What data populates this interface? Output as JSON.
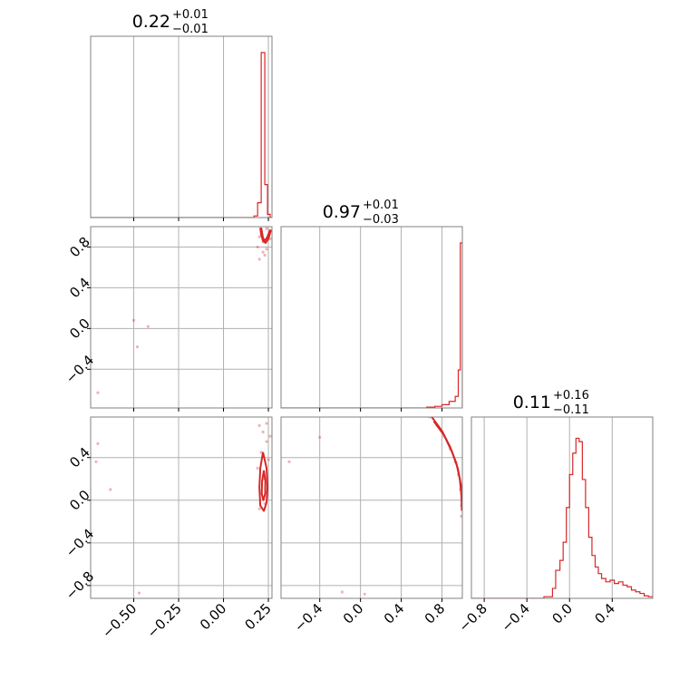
{
  "colors": {
    "series": "#d62728",
    "grid": "#b0b0b0",
    "frame": "#808080"
  },
  "chart_data": {
    "type": "corner",
    "grid": true,
    "panels": [
      {
        "id": "hist-0",
        "type": "histogram",
        "row": 0,
        "col": 0,
        "title": {
          "value": "0.22",
          "plus": "+0.01",
          "minus": "−0.01"
        },
        "xlim": [
          -0.74,
          0.27
        ],
        "xgrid": [
          -0.5,
          -0.25,
          0.0,
          0.25
        ],
        "bins": [
          {
            "x0": -0.74,
            "x1": 0.17,
            "h": 0.0
          },
          {
            "x0": 0.17,
            "x1": 0.19,
            "h": 0.01
          },
          {
            "x0": 0.19,
            "x1": 0.21,
            "h": 0.09
          },
          {
            "x0": 0.21,
            "x1": 0.23,
            "h": 1.0
          },
          {
            "x0": 0.23,
            "x1": 0.245,
            "h": 0.2
          },
          {
            "x0": 0.245,
            "x1": 0.26,
            "h": 0.02
          },
          {
            "x0": 0.26,
            "x1": 0.27,
            "h": 0.0
          }
        ]
      },
      {
        "id": "scatter-1-0",
        "type": "scatter2d",
        "row": 1,
        "col": 0,
        "xlim": [
          -0.74,
          0.27
        ],
        "ylim": [
          -0.78,
          1.0
        ],
        "xgrid": [
          -0.5,
          -0.25,
          0.0,
          0.25
        ],
        "ygrid": [
          -0.4,
          0.0,
          0.4,
          0.8
        ],
        "points": [
          [
            -0.5,
            0.08
          ],
          [
            -0.42,
            0.02
          ],
          [
            -0.48,
            -0.18
          ],
          [
            -0.7,
            -0.63
          ],
          [
            0.2,
            0.9
          ],
          [
            0.22,
            0.85
          ],
          [
            0.24,
            0.78
          ],
          [
            0.21,
            0.95
          ],
          [
            0.25,
            0.92
          ],
          [
            0.19,
            0.8
          ],
          [
            0.23,
            0.72
          ],
          [
            0.26,
            0.88
          ],
          [
            0.2,
            0.68
          ],
          [
            0.24,
            0.98
          ],
          [
            0.22,
            0.75
          ]
        ],
        "contours": [
          [
            [
              0.21,
              0.99
            ],
            [
              0.215,
              0.94
            ],
            [
              0.22,
              0.89
            ],
            [
              0.23,
              0.86
            ],
            [
              0.245,
              0.9
            ],
            [
              0.26,
              0.97
            ]
          ],
          [
            [
              0.205,
              0.99
            ],
            [
              0.21,
              0.92
            ],
            [
              0.22,
              0.86
            ],
            [
              0.235,
              0.84
            ],
            [
              0.25,
              0.88
            ],
            [
              0.265,
              0.97
            ]
          ]
        ]
      },
      {
        "id": "hist-1",
        "type": "histogram",
        "row": 1,
        "col": 1,
        "title": {
          "value": "0.97",
          "plus": "+0.01",
          "minus": "−0.03"
        },
        "xlim": [
          -0.78,
          1.0
        ],
        "xgrid": [
          -0.4,
          0.0,
          0.4,
          0.8
        ],
        "bins": [
          {
            "x0": -0.78,
            "x1": 0.65,
            "h": 0.0
          },
          {
            "x0": 0.65,
            "x1": 0.73,
            "h": 0.005
          },
          {
            "x0": 0.73,
            "x1": 0.8,
            "h": 0.01
          },
          {
            "x0": 0.8,
            "x1": 0.87,
            "h": 0.02
          },
          {
            "x0": 0.87,
            "x1": 0.93,
            "h": 0.04
          },
          {
            "x0": 0.93,
            "x1": 0.96,
            "h": 0.07
          },
          {
            "x0": 0.96,
            "x1": 0.98,
            "h": 0.23
          },
          {
            "x0": 0.98,
            "x1": 1.0,
            "h": 1.0
          }
        ]
      },
      {
        "id": "scatter-2-0",
        "type": "scatter2d",
        "row": 2,
        "col": 0,
        "xlim": [
          -0.74,
          0.27
        ],
        "ylim": [
          -0.92,
          0.78
        ],
        "xgrid": [
          -0.5,
          -0.25,
          0.0,
          0.25
        ],
        "ygrid": [
          -0.8,
          -0.4,
          0.0,
          0.4
        ],
        "points": [
          [
            -0.7,
            0.53
          ],
          [
            -0.71,
            0.36
          ],
          [
            -0.63,
            0.1
          ],
          [
            -0.47,
            -0.87
          ],
          [
            0.2,
            0.7
          ],
          [
            0.22,
            0.64
          ],
          [
            0.24,
            0.55
          ],
          [
            0.21,
            0.45
          ],
          [
            0.25,
            0.38
          ],
          [
            0.19,
            0.3
          ],
          [
            0.23,
            -0.03
          ],
          [
            0.26,
            0.6
          ],
          [
            0.2,
            -0.08
          ],
          [
            0.24,
            0.72
          ],
          [
            0.22,
            0.2
          ]
        ],
        "contours": [
          [
            [
              0.22,
              0.45
            ],
            [
              0.205,
              0.3
            ],
            [
              0.2,
              0.12
            ],
            [
              0.205,
              -0.05
            ],
            [
              0.225,
              -0.1
            ],
            [
              0.24,
              -0.02
            ],
            [
              0.245,
              0.12
            ],
            [
              0.24,
              0.3
            ],
            [
              0.22,
              0.45
            ]
          ],
          [
            [
              0.225,
              0.28
            ],
            [
              0.215,
              0.18
            ],
            [
              0.213,
              0.06
            ],
            [
              0.222,
              0.0
            ],
            [
              0.232,
              0.06
            ],
            [
              0.233,
              0.18
            ],
            [
              0.225,
              0.28
            ]
          ]
        ]
      },
      {
        "id": "scatter-2-1",
        "type": "scatter2d",
        "row": 2,
        "col": 1,
        "xlim": [
          -0.78,
          1.0
        ],
        "ylim": [
          -0.92,
          0.78
        ],
        "xgrid": [
          -0.4,
          0.0,
          0.4,
          0.8
        ],
        "ygrid": [
          -0.8,
          -0.4,
          0.0,
          0.4
        ],
        "points": [
          [
            -0.7,
            0.36
          ],
          [
            -0.4,
            0.59
          ],
          [
            -0.18,
            -0.86
          ],
          [
            0.04,
            -0.88
          ],
          [
            0.68,
            0.78
          ],
          [
            0.75,
            0.7
          ],
          [
            0.82,
            0.6
          ],
          [
            0.88,
            0.48
          ],
          [
            0.93,
            0.36
          ],
          [
            0.96,
            0.24
          ],
          [
            0.98,
            0.1
          ],
          [
            0.99,
            -0.05
          ],
          [
            0.99,
            -0.15
          ]
        ],
        "contours": [
          [
            [
              0.7,
              0.78
            ],
            [
              0.8,
              0.65
            ],
            [
              0.88,
              0.5
            ],
            [
              0.94,
              0.35
            ],
            [
              0.975,
              0.2
            ],
            [
              0.99,
              0.05
            ],
            [
              0.995,
              -0.1
            ]
          ],
          [
            [
              0.72,
              0.74
            ],
            [
              0.82,
              0.61
            ],
            [
              0.9,
              0.45
            ],
            [
              0.955,
              0.3
            ],
            [
              0.985,
              0.15
            ],
            [
              0.998,
              0.0
            ]
          ]
        ]
      },
      {
        "id": "hist-2",
        "type": "histogram",
        "row": 2,
        "col": 2,
        "title": {
          "value": "0.11",
          "plus": "+0.16",
          "minus": "−0.11"
        },
        "xlim": [
          -0.92,
          0.78
        ],
        "xgrid": [
          -0.8,
          -0.4,
          0.0,
          0.4
        ],
        "bins": [
          {
            "x0": -0.92,
            "x1": -0.24,
            "h": 0.0
          },
          {
            "x0": -0.24,
            "x1": -0.16,
            "h": 0.01
          },
          {
            "x0": -0.16,
            "x1": -0.13,
            "h": 0.06
          },
          {
            "x0": -0.13,
            "x1": -0.09,
            "h": 0.17
          },
          {
            "x0": -0.09,
            "x1": -0.06,
            "h": 0.23
          },
          {
            "x0": -0.06,
            "x1": -0.03,
            "h": 0.34
          },
          {
            "x0": -0.03,
            "x1": 0.0,
            "h": 0.55
          },
          {
            "x0": 0.0,
            "x1": 0.03,
            "h": 0.75
          },
          {
            "x0": 0.03,
            "x1": 0.06,
            "h": 0.88
          },
          {
            "x0": 0.06,
            "x1": 0.09,
            "h": 0.97
          },
          {
            "x0": 0.09,
            "x1": 0.12,
            "h": 0.95
          },
          {
            "x0": 0.12,
            "x1": 0.15,
            "h": 0.72
          },
          {
            "x0": 0.15,
            "x1": 0.18,
            "h": 0.55
          },
          {
            "x0": 0.18,
            "x1": 0.21,
            "h": 0.37
          },
          {
            "x0": 0.21,
            "x1": 0.24,
            "h": 0.26
          },
          {
            "x0": 0.24,
            "x1": 0.27,
            "h": 0.19
          },
          {
            "x0": 0.27,
            "x1": 0.3,
            "h": 0.15
          },
          {
            "x0": 0.3,
            "x1": 0.34,
            "h": 0.12
          },
          {
            "x0": 0.34,
            "x1": 0.38,
            "h": 0.1
          },
          {
            "x0": 0.38,
            "x1": 0.42,
            "h": 0.11
          },
          {
            "x0": 0.42,
            "x1": 0.46,
            "h": 0.09
          },
          {
            "x0": 0.46,
            "x1": 0.5,
            "h": 0.1
          },
          {
            "x0": 0.5,
            "x1": 0.54,
            "h": 0.08
          },
          {
            "x0": 0.54,
            "x1": 0.58,
            "h": 0.07
          },
          {
            "x0": 0.58,
            "x1": 0.62,
            "h": 0.05
          },
          {
            "x0": 0.62,
            "x1": 0.66,
            "h": 0.04
          },
          {
            "x0": 0.66,
            "x1": 0.7,
            "h": 0.03
          },
          {
            "x0": 0.7,
            "x1": 0.74,
            "h": 0.015
          },
          {
            "x0": 0.74,
            "x1": 0.78,
            "h": 0.01
          }
        ]
      }
    ],
    "tick_labels": {
      "col0_x": {
        "values": [
          -0.5,
          -0.25,
          0.0,
          0.25
        ],
        "labels": [
          "−0.50",
          "−0.25",
          "0.00",
          "0.25"
        ]
      },
      "col1_x": {
        "values": [
          -0.4,
          0.0,
          0.4,
          0.8
        ],
        "labels": [
          "−0.4",
          "0.0",
          "0.4",
          "0.8"
        ]
      },
      "col2_x": {
        "values": [
          -0.8,
          -0.4,
          0.0,
          0.4
        ],
        "labels": [
          "−0.8",
          "−0.4",
          "0.0",
          "0.4"
        ]
      },
      "row1_y": {
        "values": [
          -0.4,
          0.0,
          0.4,
          0.8
        ],
        "labels": [
          "−0.4",
          "0.0",
          "0.4",
          "0.8"
        ]
      },
      "row2_y": {
        "values": [
          -0.8,
          -0.4,
          0.0,
          0.4
        ],
        "labels": [
          "−0.8",
          "−0.4",
          "0.0",
          "0.4"
        ]
      }
    }
  }
}
